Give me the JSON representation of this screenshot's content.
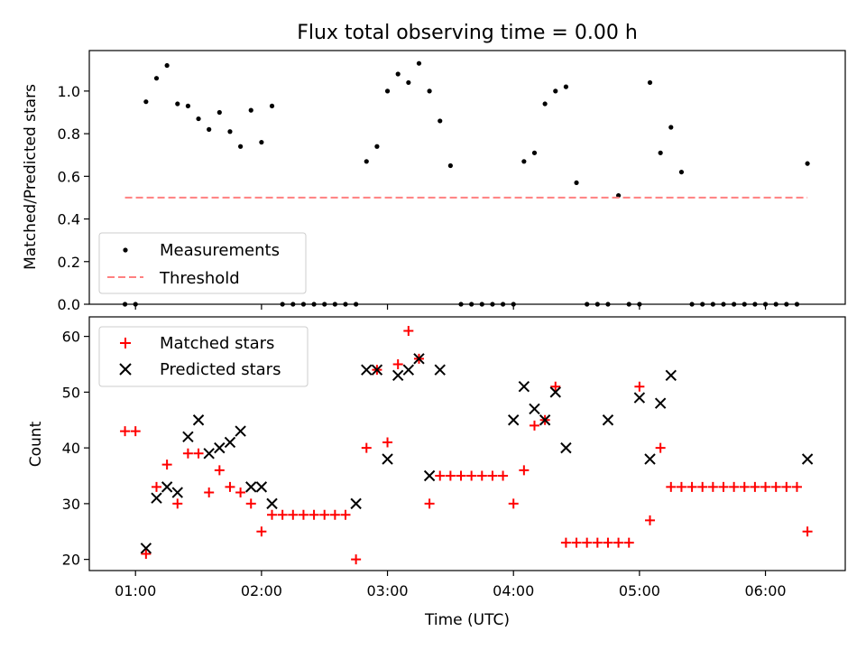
{
  "chart_data": [
    {
      "type": "scatter",
      "title": "Flux total observing time = 0.00 h",
      "ylabel": "Matched/Predicted stars",
      "xlim": [
        "00:38",
        "06:38"
      ],
      "ylim": [
        0,
        1.19
      ],
      "xticks": [
        "01:00",
        "02:00",
        "03:00",
        "04:00",
        "05:00",
        "06:00"
      ],
      "yticks": [
        "0.0",
        "0.2",
        "0.4",
        "0.6",
        "0.8",
        "1.0"
      ],
      "legend": "lower-left",
      "series": [
        {
          "name": "Measurements",
          "marker": "dot",
          "color": "#000000",
          "x": [
            "00:55",
            "01:00",
            "01:05",
            "01:10",
            "01:15",
            "01:20",
            "01:25",
            "01:30",
            "01:35",
            "01:40",
            "01:45",
            "01:50",
            "01:55",
            "02:00",
            "02:05",
            "02:10",
            "02:15",
            "02:20",
            "02:25",
            "02:30",
            "02:35",
            "02:40",
            "02:45",
            "02:50",
            "02:55",
            "03:00",
            "03:05",
            "03:10",
            "03:15",
            "03:20",
            "03:25",
            "03:30",
            "03:35",
            "03:40",
            "03:45",
            "03:50",
            "03:55",
            "04:00",
            "04:05",
            "04:10",
            "04:15",
            "04:20",
            "04:25",
            "04:30",
            "04:35",
            "04:40",
            "04:45",
            "04:50",
            "04:55",
            "05:00",
            "05:05",
            "05:10",
            "05:15",
            "05:20",
            "05:25",
            "05:30",
            "05:35",
            "05:40",
            "05:45",
            "05:50",
            "05:55",
            "06:00",
            "06:05",
            "06:10",
            "06:15",
            "06:20"
          ],
          "y": [
            0.0,
            0.0,
            0.95,
            1.06,
            1.12,
            0.94,
            0.93,
            0.87,
            0.82,
            0.9,
            0.81,
            0.74,
            0.91,
            0.76,
            0.93,
            0.0,
            0.0,
            0.0,
            0.0,
            0.0,
            0.0,
            0.0,
            0.0,
            0.67,
            0.74,
            1.0,
            1.08,
            1.04,
            1.13,
            1.0,
            0.86,
            0.65,
            0.0,
            0.0,
            0.0,
            0.0,
            0.0,
            0.0,
            0.67,
            0.71,
            0.94,
            1.0,
            1.02,
            0.57,
            0.0,
            0.0,
            0.0,
            0.51,
            0.0,
            0.0,
            1.04,
            0.71,
            0.83,
            0.62,
            0.0,
            0.0,
            0.0,
            0.0,
            0.0,
            0.0,
            0.0,
            0.0,
            0.0,
            0.0,
            0.0,
            0.66
          ]
        },
        {
          "name": "Threshold",
          "type": "line",
          "style": "dashed",
          "color": "#ff8080",
          "x": [
            "00:55",
            "06:20"
          ],
          "y": [
            0.5,
            0.5
          ]
        }
      ]
    },
    {
      "type": "scatter",
      "xlabel": "Time (UTC)",
      "ylabel": "Count",
      "xlim": [
        "00:38",
        "06:38"
      ],
      "ylim": [
        18,
        63.5
      ],
      "xticks": [
        "01:00",
        "02:00",
        "03:00",
        "04:00",
        "05:00",
        "06:00"
      ],
      "yticks": [
        "20",
        "30",
        "40",
        "50",
        "60"
      ],
      "legend": "upper-left",
      "series": [
        {
          "name": "Matched stars",
          "marker": "plus",
          "color": "#ff0000",
          "x": [
            "00:55",
            "01:00",
            "01:05",
            "01:10",
            "01:15",
            "01:20",
            "01:25",
            "01:30",
            "01:35",
            "01:40",
            "01:45",
            "01:50",
            "01:55",
            "02:00",
            "02:05",
            "02:10",
            "02:15",
            "02:20",
            "02:25",
            "02:30",
            "02:35",
            "02:40",
            "02:45",
            "02:50",
            "02:55",
            "03:00",
            "03:05",
            "03:10",
            "03:15",
            "03:20",
            "03:25",
            "03:30",
            "03:35",
            "03:40",
            "03:45",
            "03:50",
            "03:55",
            "04:00",
            "04:05",
            "04:10",
            "04:15",
            "04:20",
            "04:25",
            "04:30",
            "04:35",
            "04:40",
            "04:45",
            "04:50",
            "04:55",
            "05:00",
            "05:05",
            "05:10",
            "05:15",
            "05:20",
            "05:25",
            "05:30",
            "05:35",
            "05:40",
            "05:45",
            "05:50",
            "05:55",
            "06:00",
            "06:05",
            "06:10",
            "06:15",
            "06:20"
          ],
          "y": [
            43,
            43,
            21,
            33,
            37,
            30,
            39,
            39,
            32,
            36,
            33,
            32,
            30,
            25,
            28,
            28,
            28,
            28,
            28,
            28,
            28,
            28,
            20,
            40,
            54,
            41,
            55,
            61,
            56,
            30,
            35,
            35,
            35,
            35,
            35,
            35,
            35,
            30,
            36,
            44,
            45,
            51,
            23,
            23,
            23,
            23,
            23,
            23,
            23,
            51,
            27,
            40,
            33,
            33,
            33,
            33,
            33,
            33,
            33,
            33,
            33,
            33,
            33,
            33,
            33,
            25
          ]
        },
        {
          "name": "Predicted stars",
          "marker": "x",
          "color": "#000000",
          "x": [
            "01:05",
            "01:10",
            "01:15",
            "01:20",
            "01:25",
            "01:30",
            "01:35",
            "01:40",
            "01:45",
            "01:50",
            "01:55",
            "02:00",
            "02:05",
            "02:45",
            "02:50",
            "02:55",
            "03:00",
            "03:05",
            "03:10",
            "03:15",
            "03:20",
            "03:25",
            "04:00",
            "04:05",
            "04:10",
            "04:15",
            "04:20",
            "04:25",
            "04:45",
            "05:00",
            "05:05",
            "05:10",
            "05:15",
            "06:20"
          ],
          "y": [
            22,
            31,
            33,
            32,
            42,
            45,
            39,
            40,
            41,
            43,
            33,
            33,
            30,
            30,
            54,
            54,
            38,
            53,
            54,
            56,
            35,
            54,
            45,
            51,
            47,
            45,
            50,
            40,
            45,
            49,
            38,
            48,
            53,
            38
          ]
        }
      ]
    }
  ]
}
